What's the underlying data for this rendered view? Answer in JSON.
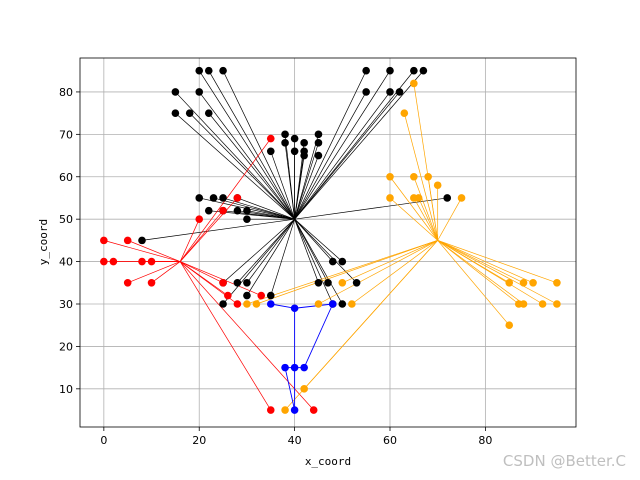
{
  "watermark": "CSDN @Better.C",
  "chart_data": {
    "type": "scatter",
    "title": "",
    "xlabel": "x_coord",
    "ylabel": "y_coord",
    "xlim": [
      -5,
      99
    ],
    "ylim": [
      1,
      88
    ],
    "xticks": [
      0,
      20,
      40,
      60,
      80
    ],
    "yticks": [
      10,
      20,
      30,
      40,
      50,
      60,
      70,
      80
    ],
    "grid": true,
    "depot": [
      40,
      50
    ],
    "series": [
      {
        "name": "black",
        "color": "#000000",
        "hub": [
          40,
          50
        ],
        "points": [
          [
            20,
            85
          ],
          [
            22,
            85
          ],
          [
            25,
            85
          ],
          [
            15,
            80
          ],
          [
            20,
            80
          ],
          [
            15,
            75
          ],
          [
            18,
            75
          ],
          [
            22,
            75
          ],
          [
            55,
            85
          ],
          [
            60,
            85
          ],
          [
            65,
            85
          ],
          [
            67,
            85
          ],
          [
            55,
            80
          ],
          [
            60,
            80
          ],
          [
            62,
            80
          ],
          [
            38,
            70
          ],
          [
            38,
            68
          ],
          [
            40,
            69
          ],
          [
            40,
            66
          ],
          [
            42,
            68
          ],
          [
            42,
            66
          ],
          [
            42,
            65
          ],
          [
            45,
            70
          ],
          [
            45,
            68
          ],
          [
            45,
            65
          ],
          [
            35,
            66
          ],
          [
            20,
            55
          ],
          [
            23,
            55
          ],
          [
            25,
            55
          ],
          [
            28,
            55
          ],
          [
            22,
            52
          ],
          [
            25,
            52
          ],
          [
            28,
            52
          ],
          [
            30,
            52
          ],
          [
            30,
            50
          ],
          [
            8,
            45
          ],
          [
            48,
            40
          ],
          [
            50,
            40
          ],
          [
            45,
            35
          ],
          [
            47,
            35
          ],
          [
            53,
            35
          ],
          [
            50,
            30
          ],
          [
            48,
            30
          ],
          [
            25,
            35
          ],
          [
            28,
            35
          ],
          [
            30,
            35
          ],
          [
            30,
            32
          ],
          [
            35,
            32
          ],
          [
            25,
            30
          ],
          [
            72,
            55
          ]
        ]
      },
      {
        "name": "red",
        "color": "#ff0000",
        "hub": [
          16,
          40
        ],
        "points": [
          [
            0,
            45
          ],
          [
            5,
            45
          ],
          [
            0,
            40
          ],
          [
            2,
            40
          ],
          [
            8,
            40
          ],
          [
            10,
            40
          ],
          [
            5,
            35
          ],
          [
            10,
            35
          ],
          [
            20,
            50
          ],
          [
            25,
            52
          ],
          [
            28,
            55
          ],
          [
            35,
            69
          ],
          [
            25,
            35
          ],
          [
            26,
            32
          ],
          [
            28,
            30
          ],
          [
            33,
            32
          ],
          [
            35,
            5
          ],
          [
            44,
            5
          ]
        ]
      },
      {
        "name": "orange",
        "color": "#ffa500",
        "hub": [
          70,
          45
        ],
        "points": [
          [
            65,
            82
          ],
          [
            63,
            75
          ],
          [
            60,
            60
          ],
          [
            65,
            60
          ],
          [
            68,
            60
          ],
          [
            70,
            58
          ],
          [
            60,
            55
          ],
          [
            65,
            55
          ],
          [
            66,
            55
          ],
          [
            75,
            55
          ],
          [
            85,
            35
          ],
          [
            88,
            35
          ],
          [
            90,
            35
          ],
          [
            95,
            35
          ],
          [
            87,
            30
          ],
          [
            88,
            30
          ],
          [
            92,
            30
          ],
          [
            95,
            30
          ],
          [
            85,
            25
          ],
          [
            50,
            35
          ],
          [
            52,
            30
          ],
          [
            45,
            30
          ],
          [
            42,
            10
          ],
          [
            38,
            5
          ],
          [
            30,
            30
          ],
          [
            32,
            30
          ]
        ]
      },
      {
        "name": "blue",
        "color": "#0000ff",
        "route": [
          [
            35,
            30
          ],
          [
            40,
            29
          ],
          [
            48,
            30
          ],
          [
            42,
            15
          ],
          [
            40,
            15
          ],
          [
            38,
            15
          ],
          [
            40,
            5
          ],
          [
            40,
            29
          ]
        ],
        "points": [
          [
            35,
            30
          ],
          [
            40,
            29
          ],
          [
            48,
            30
          ],
          [
            38,
            15
          ],
          [
            40,
            15
          ],
          [
            42,
            15
          ],
          [
            40,
            5
          ]
        ]
      }
    ]
  }
}
